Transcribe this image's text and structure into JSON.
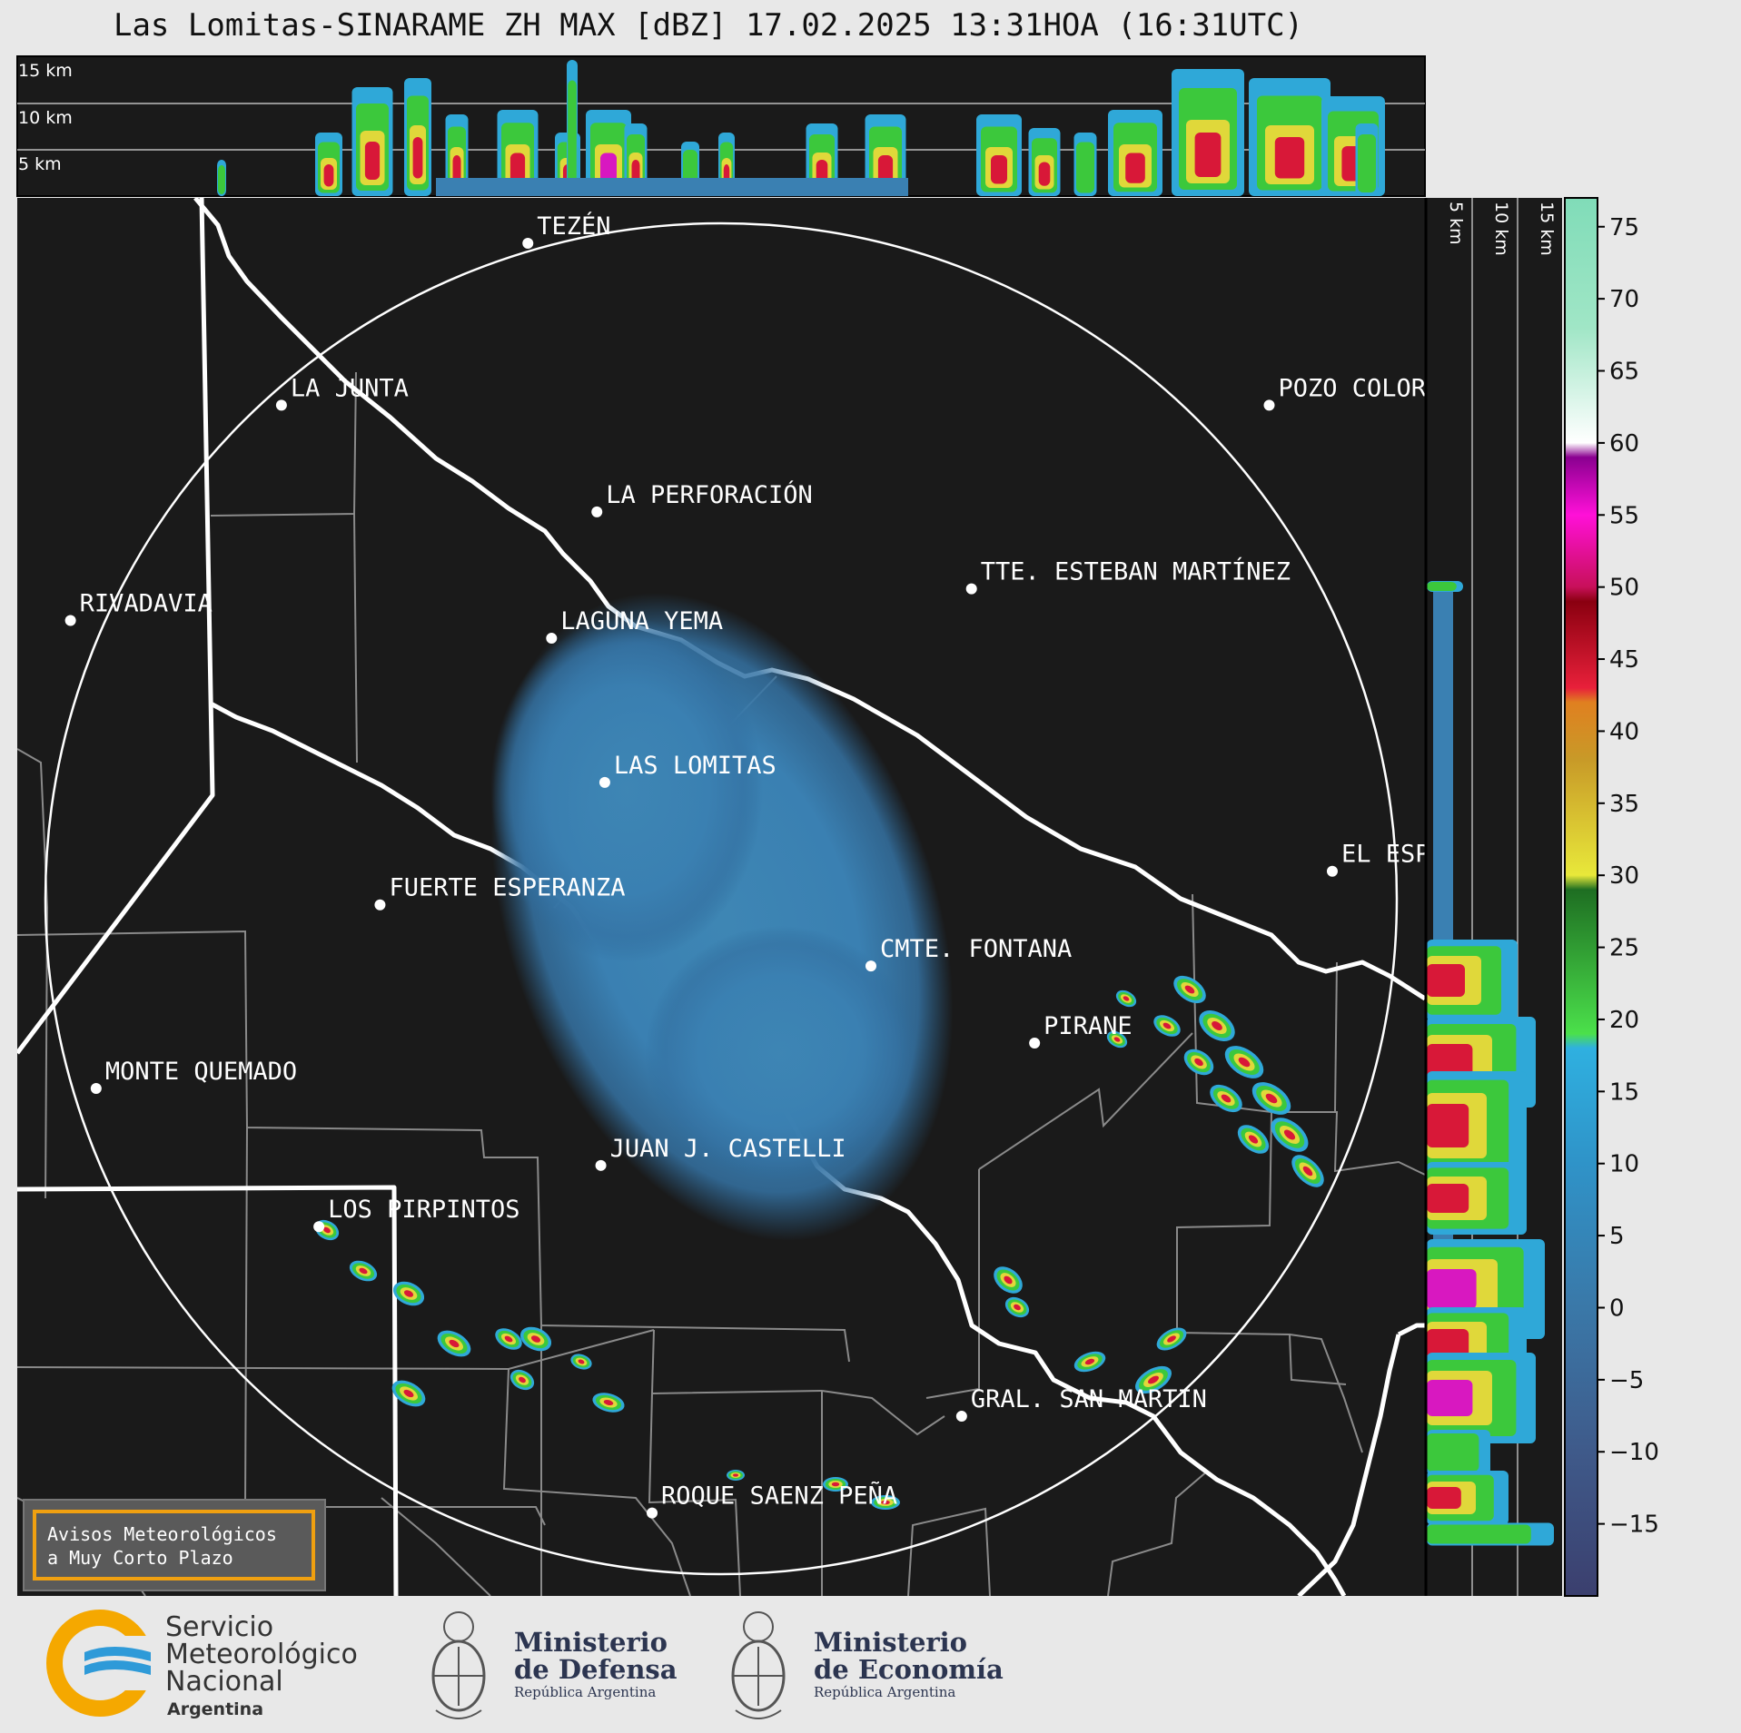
{
  "title": "Las Lomitas-SINARAME ZH MAX [dBZ] 17.02.2025 13:31HOA (16:31UTC)",
  "top_profile_labels": [
    "15 km",
    "10 km",
    "5 km"
  ],
  "side_profile_labels": [
    "5 km",
    "10 km",
    "15 km"
  ],
  "colorbar": {
    "ticks": [
      "75",
      "70",
      "65",
      "60",
      "55",
      "50",
      "45",
      "40",
      "35",
      "30",
      "25",
      "20",
      "15",
      "10",
      "5",
      "0",
      "−5",
      "−10",
      "−15"
    ],
    "min": -20,
    "max": 77,
    "stops": [
      {
        "v": -20,
        "c": "#3b3f6e"
      },
      {
        "v": -10,
        "c": "#3f5a8a"
      },
      {
        "v": 0,
        "c": "#3a78a8"
      },
      {
        "v": 10,
        "c": "#2f93c8"
      },
      {
        "v": 18,
        "c": "#2fb0e0"
      },
      {
        "v": 19,
        "c": "#4be04b"
      },
      {
        "v": 29,
        "c": "#1e6e22"
      },
      {
        "v": 30,
        "c": "#e8e83a"
      },
      {
        "v": 38,
        "c": "#c89a28"
      },
      {
        "v": 42,
        "c": "#e08020"
      },
      {
        "v": 43,
        "c": "#e8203a"
      },
      {
        "v": 49,
        "c": "#8a0010"
      },
      {
        "v": 50,
        "c": "#c8105a"
      },
      {
        "v": 55,
        "c": "#ff10d8"
      },
      {
        "v": 59,
        "c": "#8a0090"
      },
      {
        "v": 60,
        "c": "#ffffff"
      },
      {
        "v": 68,
        "c": "#a0e6c6"
      },
      {
        "v": 77,
        "c": "#80dcb8"
      }
    ]
  },
  "cities": [
    {
      "name": "TEZÉN",
      "lat": -22.98,
      "lon": -60.98
    },
    {
      "name": "LA JUNTA",
      "lat": -23.8,
      "lon": -62.23
    },
    {
      "name": "POZO COLORADO",
      "lat": -23.8,
      "lon": -57.22
    },
    {
      "name": "LA PERFORACIÓN",
      "lat": -24.34,
      "lon": -60.63
    },
    {
      "name": "TTE. ESTEBAN MARTÍNEZ",
      "lat": -24.73,
      "lon": -58.73
    },
    {
      "name": "RIVADAVIA",
      "lat": -24.89,
      "lon": -63.3
    },
    {
      "name": "LAGUNA YEMA",
      "lat": -24.98,
      "lon": -60.86
    },
    {
      "name": "LAS LOMITAS",
      "lat": -25.71,
      "lon": -60.59
    },
    {
      "name": "EL ESPINILLO",
      "lat": -26.16,
      "lon": -56.9
    },
    {
      "name": "FUERTE ESPERANZA",
      "lat": -26.33,
      "lon": -61.73
    },
    {
      "name": "CMTE. FONTANA",
      "lat": -26.64,
      "lon": -59.24
    },
    {
      "name": "PIRANE",
      "lat": -27.03,
      "lon": -58.41
    },
    {
      "name": "MONTE QUEMADO",
      "lat": -27.26,
      "lon": -63.17
    },
    {
      "name": "JUAN J. CASTELLI",
      "lat": -27.65,
      "lon": -60.61
    },
    {
      "name": "LOS PIRPINTOS",
      "lat": -27.96,
      "lon": -62.04
    },
    {
      "name": "GRAL. SAN MARTIN",
      "lat": -28.92,
      "lon": -58.78
    },
    {
      "name": "ROQUE SAENZ PEÑA",
      "lat": -29.41,
      "lon": -60.35
    }
  ],
  "alert_box": {
    "line1": "Avisos Meteorológicos",
    "line2": "a Muy Corto Plazo"
  },
  "logos": {
    "smn": {
      "line1": "Servicio",
      "line2": "Meteorológico",
      "line3": "Nacional",
      "line4": "Argentina"
    },
    "defensa": {
      "line1": "Ministerio",
      "line2": "de Defensa",
      "line3": "República Argentina"
    },
    "economia": {
      "line1": "Ministerio",
      "line2": "de Economía",
      "line3": "República Argentina"
    }
  },
  "colors": {
    "map_bg": "#1a1a1a",
    "page_bg": "#e8e8e8",
    "range_ring": "#ffffff",
    "border": "#ffffff",
    "province_lines": "#8a8a8a"
  }
}
